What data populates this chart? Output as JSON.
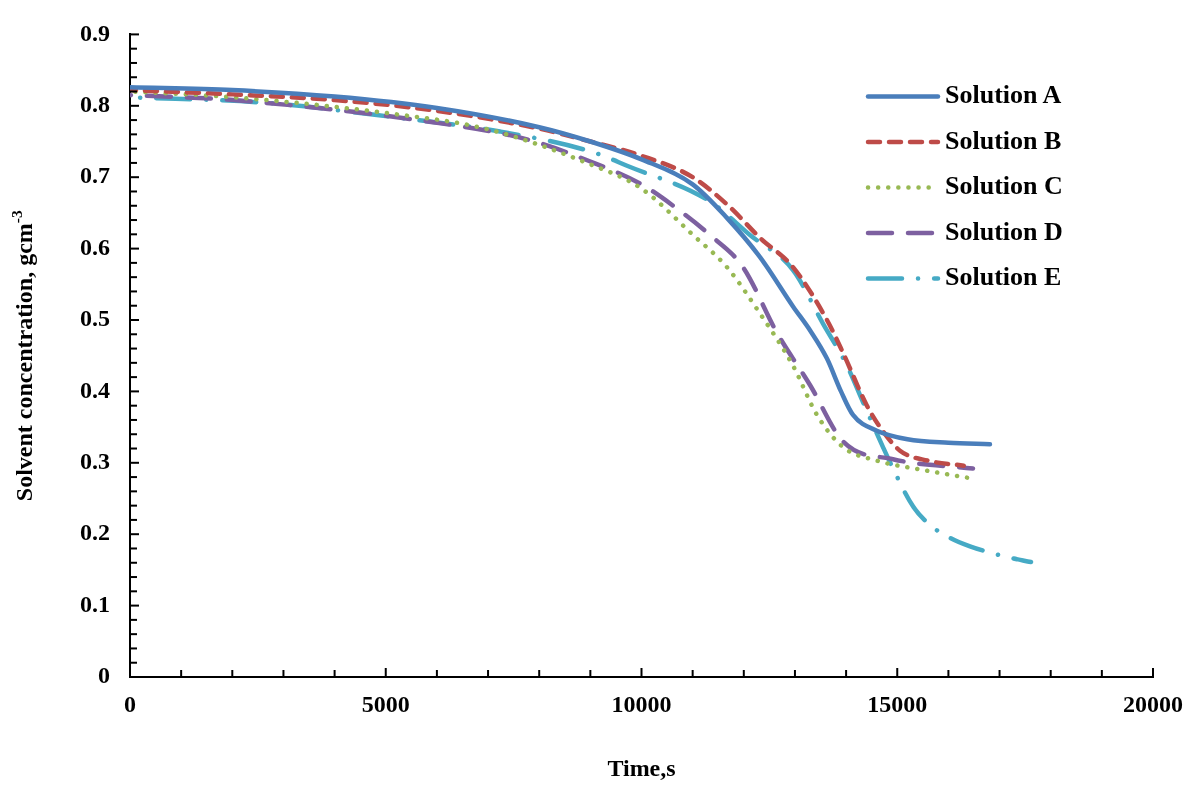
{
  "chart_data": {
    "type": "line",
    "xlabel": "Time,s",
    "ylabel": "Solvent concentration, gcm$^{-3}$",
    "xlim": [
      0,
      20000
    ],
    "xticks": [
      0,
      {
        "value": 1000,
        "label": null
      },
      {
        "value": 2000,
        "label": null
      },
      {
        "value": 3000,
        "label": null
      },
      {
        "value": 4000,
        "label": null
      },
      5000,
      {
        "value": 6000,
        "label": null
      },
      {
        "value": 7000,
        "label": null
      },
      {
        "value": 8000,
        "label": null
      },
      {
        "value": 9000,
        "label": null
      },
      10000,
      {
        "value": 11000,
        "label": null
      },
      {
        "value": 12000,
        "label": null
      },
      {
        "value": 13000,
        "label": null
      },
      {
        "value": 14000,
        "label": null
      },
      15000,
      {
        "value": 16000,
        "label": null
      },
      {
        "value": 17000,
        "label": null
      },
      {
        "value": 18000,
        "label": null
      },
      {
        "value": 19000,
        "label": null
      },
      20000
    ],
    "ylim": [
      0,
      0.9
    ],
    "yticks": [
      0,
      {
        "value": 0.02,
        "label": null
      },
      {
        "value": 0.04,
        "label": null
      },
      {
        "value": 0.06,
        "label": null
      },
      {
        "value": 0.08,
        "label": null
      },
      0.1,
      {
        "value": 0.12,
        "label": null
      },
      {
        "value": 0.14,
        "label": null
      },
      {
        "value": 0.16,
        "label": null
      },
      {
        "value": 0.18,
        "label": null
      },
      0.2,
      {
        "value": 0.22,
        "label": null
      },
      {
        "value": 0.24,
        "label": null
      },
      {
        "value": 0.26,
        "label": null
      },
      {
        "value": 0.28,
        "label": null
      },
      0.3,
      {
        "value": 0.32,
        "label": null
      },
      {
        "value": 0.34,
        "label": null
      },
      {
        "value": 0.36,
        "label": null
      },
      {
        "value": 0.38,
        "label": null
      },
      0.4,
      {
        "value": 0.42,
        "label": null
      },
      {
        "value": 0.44,
        "label": null
      },
      {
        "value": 0.46,
        "label": null
      },
      {
        "value": 0.48,
        "label": null
      },
      0.5,
      {
        "value": 0.52,
        "label": null
      },
      {
        "value": 0.54,
        "label": null
      },
      {
        "value": 0.56,
        "label": null
      },
      {
        "value": 0.58,
        "label": null
      },
      0.6,
      {
        "value": 0.62,
        "label": null
      },
      {
        "value": 0.64,
        "label": null
      },
      {
        "value": 0.66,
        "label": null
      },
      {
        "value": 0.68,
        "label": null
      },
      0.7,
      {
        "value": 0.72,
        "label": null
      },
      {
        "value": 0.74,
        "label": null
      },
      {
        "value": 0.76,
        "label": null
      },
      {
        "value": 0.78,
        "label": null
      },
      0.8,
      {
        "value": 0.82,
        "label": null
      },
      {
        "value": 0.84,
        "label": null
      },
      {
        "value": 0.86,
        "label": null
      },
      {
        "value": 0.88,
        "label": null
      },
      0.9
    ],
    "grid": false,
    "legend": "top right",
    "marker": "none",
    "series": [
      {
        "name": "Solution A",
        "color": "#4a7ebb",
        "line_style": "solid",
        "x": [
          0,
          2000,
          4000,
          6000,
          8000,
          9000,
          10000,
          11000,
          11670,
          12317,
          12962,
          13300,
          13626,
          13900,
          14135,
          14600,
          15200,
          16000,
          16813
        ],
        "values": [
          0.826,
          0.822,
          0.813,
          0.797,
          0.77,
          0.75,
          0.725,
          0.69,
          0.643,
          0.588,
          0.519,
          0.485,
          0.446,
          0.4,
          0.367,
          0.345,
          0.333,
          0.328,
          0.326
        ]
      },
      {
        "name": "Solution B",
        "color": "#be4b48",
        "line_style": "dashed",
        "x": [
          0,
          2000,
          4000,
          6000,
          8000,
          9000,
          10000,
          11000,
          11700,
          12317,
          12962,
          13626,
          13940,
          14400,
          14663,
          15054,
          15600,
          16300
        ],
        "values": [
          0.822,
          0.816,
          0.808,
          0.793,
          0.768,
          0.75,
          0.73,
          0.7,
          0.66,
          0.615,
          0.574,
          0.5,
          0.454,
          0.381,
          0.35,
          0.317,
          0.303,
          0.296
        ]
      },
      {
        "name": "Solution C",
        "color": "#98b954",
        "line_style": "dotted",
        "x": [
          0,
          2000,
          5000,
          7000,
          9000,
          10000,
          11007,
          11670,
          12317,
          12962,
          13431,
          13940,
          14604,
          15500,
          16383
        ],
        "values": [
          0.82,
          0.812,
          0.79,
          0.767,
          0.718,
          0.684,
          0.619,
          0.574,
          0.509,
          0.436,
          0.367,
          0.322,
          0.303,
          0.29,
          0.279
        ]
      },
      {
        "name": "Solution D",
        "color": "#7d60a0",
        "line_style": "long_dashed",
        "x": [
          0,
          2014,
          5924,
          7762,
          9000,
          10000,
          10694,
          11339,
          11984,
          12649,
          13294,
          13940,
          14917,
          16480
        ],
        "values": [
          0.815,
          0.808,
          0.777,
          0.753,
          0.722,
          0.69,
          0.656,
          0.619,
          0.574,
          0.482,
          0.409,
          0.33,
          0.305,
          0.292
        ]
      },
      {
        "name": "Solution E",
        "color": "#46aac5",
        "line_style": "dash_dot",
        "x": [
          0,
          2678,
          5279,
          7234,
          9052,
          9717,
          11339,
          12121,
          12962,
          13548,
          14018,
          14330,
          14721,
          14917,
          15308,
          15640,
          16030,
          16422,
          17146,
          17615
        ],
        "values": [
          0.812,
          0.804,
          0.783,
          0.764,
          0.735,
          0.716,
          0.666,
          0.619,
          0.57,
          0.495,
          0.436,
          0.385,
          0.322,
          0.292,
          0.239,
          0.213,
          0.195,
          0.183,
          0.168,
          0.161
        ]
      }
    ]
  }
}
